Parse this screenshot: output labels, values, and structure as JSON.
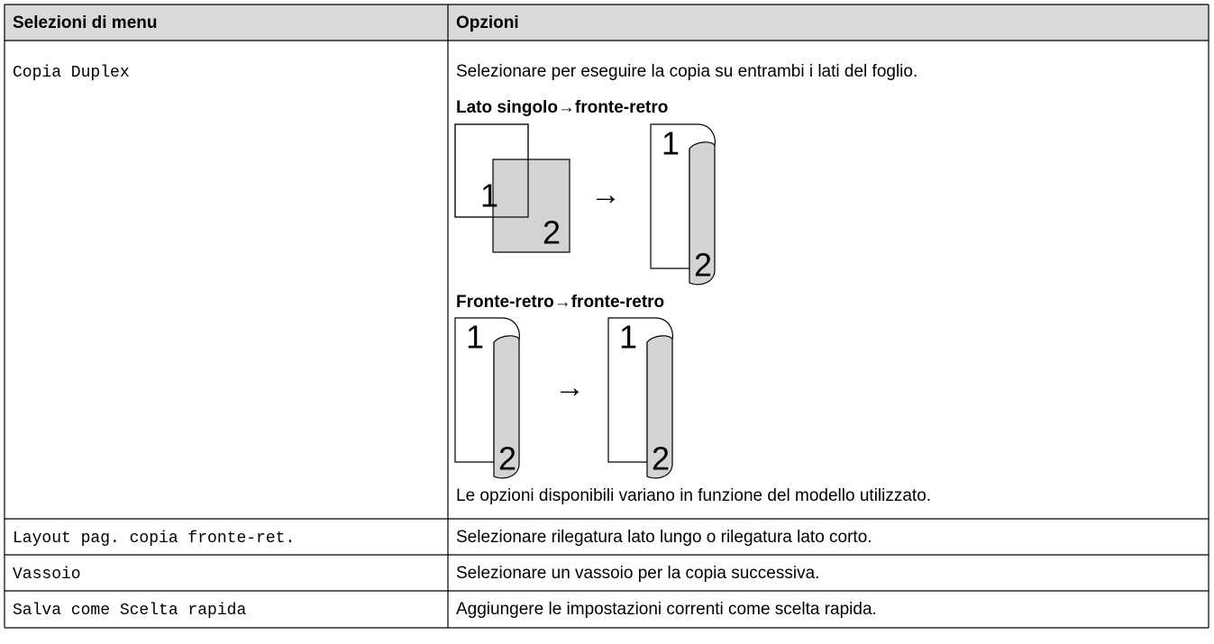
{
  "table": {
    "header": [
      "Selezioni di menu",
      "Opzioni"
    ],
    "rows": [
      {
        "menu": "Copia Duplex",
        "options": [
          "Selezionare per eseguire la copia su entrambi i lati del foglio.",
          "Lato singolo→fronte-retro",
          "Fronte-retro→fronte-retro",
          "Le opzioni disponibili variano in funzione del modello utilizzato."
        ],
        "diagrams": [
          [
            "1",
            "2",
            "→",
            "1",
            "2"
          ],
          [
            "1",
            "2",
            "→",
            "1",
            "2"
          ]
        ]
      },
      {
        "menu": "Layout pag. copia fronte-ret.",
        "options": [
          "Selezionare rilegatura lato lungo o rilegatura lato corto."
        ]
      },
      {
        "menu": "Vassoio",
        "options": [
          "Selezionare un vassoio per la copia successiva."
        ]
      },
      {
        "menu": "Salva come Scelta rapida",
        "options": [
          "Aggiungere le impostazioni correnti come scelta rapida."
        ]
      }
    ]
  }
}
